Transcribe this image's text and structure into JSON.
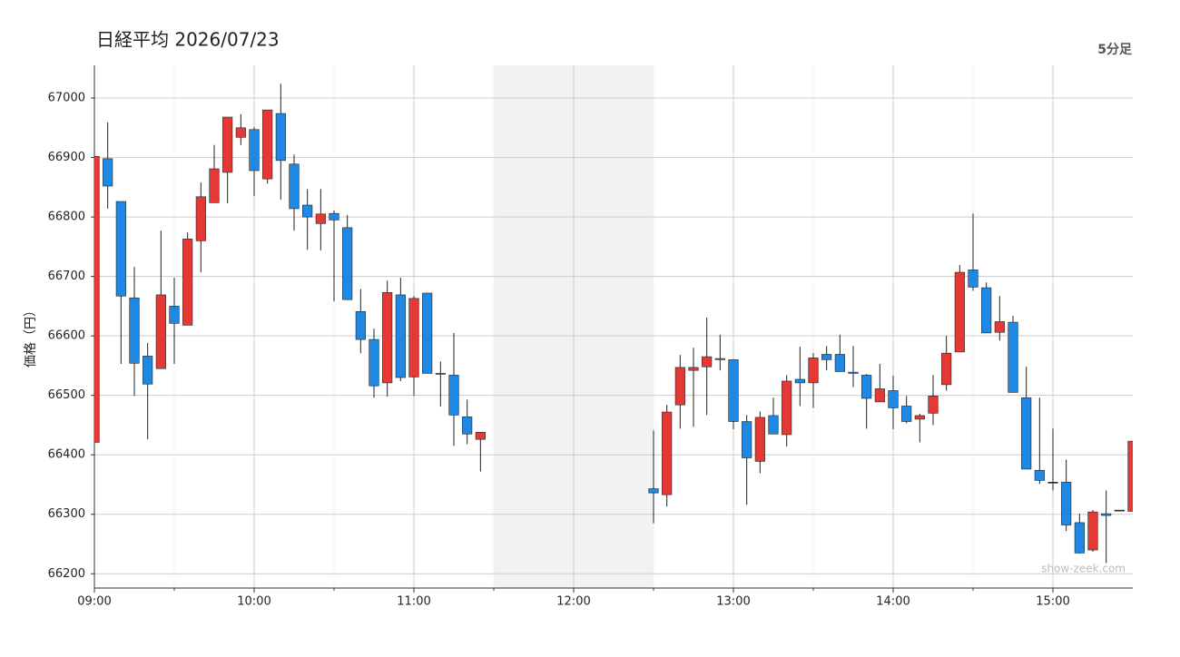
{
  "chart_data": {
    "type": "candlestick",
    "title": "日経平均 2026/07/23",
    "subtitle": "5分足",
    "y_label": "価格（円）",
    "watermark": "show-zeek.com",
    "up_color": "#e53935",
    "down_color": "#1e88e5",
    "grid": true,
    "shaded_range": [
      "11:30",
      "12:30"
    ],
    "xlim": [
      "09:00",
      "15:30"
    ],
    "xticks": [
      "09:00",
      "10:00",
      "11:00",
      "12:00",
      "13:00",
      "14:00",
      "15:00"
    ],
    "minor_xticks": [
      "09:30",
      "10:30",
      "11:30",
      "12:30",
      "13:30",
      "14:30"
    ],
    "ylim": [
      66176,
      67055
    ],
    "yticks": [
      66200,
      66300,
      66400,
      66500,
      66600,
      66700,
      66800,
      66900,
      67000
    ],
    "x": [
      "09:00",
      "09:05",
      "09:10",
      "09:15",
      "09:20",
      "09:25",
      "09:30",
      "09:35",
      "09:40",
      "09:45",
      "09:50",
      "09:55",
      "10:00",
      "10:05",
      "10:10",
      "10:15",
      "10:20",
      "10:25",
      "10:30",
      "10:35",
      "10:40",
      "10:45",
      "10:50",
      "10:55",
      "11:00",
      "11:05",
      "11:10",
      "11:15",
      "11:20",
      "11:25",
      "12:30",
      "12:35",
      "12:40",
      "12:45",
      "12:50",
      "12:55",
      "13:00",
      "13:05",
      "13:10",
      "13:15",
      "13:20",
      "13:25",
      "13:30",
      "13:35",
      "13:40",
      "13:45",
      "13:50",
      "13:55",
      "14:00",
      "14:05",
      "14:10",
      "14:15",
      "14:20",
      "14:25",
      "14:30",
      "14:35",
      "14:40",
      "14:45",
      "14:50",
      "14:55",
      "15:00",
      "15:05",
      "15:10",
      "15:15",
      "15:20",
      "15:25",
      "15:30"
    ],
    "open": [
      66421,
      66898,
      66826,
      66664,
      66566,
      66545,
      66650,
      66618,
      66760,
      66824,
      66875,
      66934,
      66947,
      66864,
      66974,
      66889,
      66820,
      66789,
      66806,
      66782,
      66641,
      66594,
      66521,
      66669,
      66531,
      66672,
      66537,
      66534,
      66464,
      66426,
      66343,
      66333,
      66484,
      66542,
      66548,
      66562,
      66560,
      66456,
      66389,
      66466,
      66434,
      66527,
      66521,
      66569,
      66569,
      66539,
      66534,
      66489,
      66508,
      66482,
      66460,
      66470,
      66518,
      66573,
      66711,
      66681,
      66606,
      66623,
      66496,
      66374,
      66354,
      66354,
      66286,
      66240,
      66301,
      66307,
      66305
    ],
    "high": [
      66902,
      66959,
      66826,
      66716,
      66588,
      66777,
      66698,
      66774,
      66858,
      66921,
      66968,
      66973,
      66951,
      66980,
      67024,
      66905,
      66847,
      66847,
      66811,
      66803,
      66679,
      66612,
      66693,
      66698,
      66667,
      66672,
      66557,
      66605,
      66493,
      66438,
      66441,
      66484,
      66568,
      66580,
      66631,
      66602,
      66560,
      66467,
      66473,
      66496,
      66534,
      66582,
      66571,
      66583,
      66602,
      66583,
      66536,
      66553,
      66533,
      66499,
      66469,
      66534,
      66600,
      66719,
      66806,
      66690,
      66667,
      66634,
      66548,
      66496,
      66444,
      66392,
      66301,
      66307,
      66340,
      66307,
      66423
    ],
    "low": [
      66421,
      66814,
      66553,
      66499,
      66426,
      66545,
      66553,
      66618,
      66707,
      66824,
      66823,
      66921,
      66835,
      66856,
      66829,
      66777,
      66745,
      66744,
      66658,
      66661,
      66571,
      66496,
      66498,
      66524,
      66499,
      66537,
      66481,
      66415,
      66418,
      66372,
      66285,
      66313,
      66444,
      66447,
      66467,
      66542,
      66443,
      66316,
      66369,
      66435,
      66414,
      66482,
      66479,
      66542,
      66540,
      66514,
      66444,
      66489,
      66443,
      66453,
      66421,
      66450,
      66508,
      66573,
      66676,
      66605,
      66592,
      66505,
      66376,
      66351,
      66340,
      66272,
      66234,
      66237,
      66218,
      66307,
      66305
    ],
    "close": [
      66902,
      66852,
      66667,
      66554,
      66519,
      66669,
      66621,
      66763,
      66834,
      66881,
      66968,
      66950,
      66878,
      66980,
      66895,
      66814,
      66800,
      66805,
      66795,
      66661,
      66594,
      66516,
      66673,
      66530,
      66663,
      66537,
      66536,
      66467,
      66435,
      66438,
      66336,
      66472,
      66547,
      66547,
      66565,
      66560,
      66456,
      66395,
      66463,
      66435,
      66524,
      66521,
      66563,
      66560,
      66540,
      66537,
      66495,
      66511,
      66479,
      66456,
      66466,
      66499,
      66571,
      66707,
      66682,
      66605,
      66624,
      66505,
      66376,
      66357,
      66354,
      66282,
      66235,
      66304,
      66298,
      66307,
      66423
    ]
  }
}
